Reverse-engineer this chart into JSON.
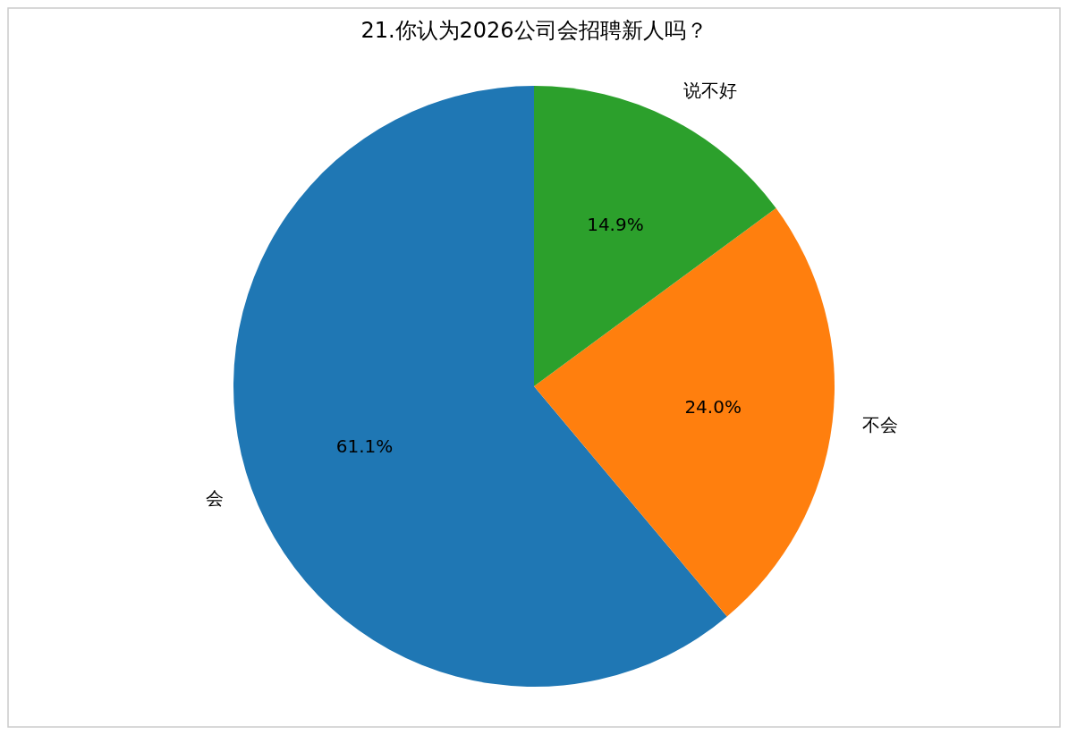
{
  "chart_data": {
    "type": "pie",
    "title": "21.你认为2026公司会招聘新人吗？",
    "categories": [
      "会",
      "不会",
      "说不好"
    ],
    "values": [
      61.1,
      24.0,
      14.9
    ],
    "colors": [
      "#1f77b4",
      "#ff7f0e",
      "#2ca02c"
    ],
    "value_labels": [
      "61.1%",
      "24.0%",
      "14.9%"
    ]
  }
}
